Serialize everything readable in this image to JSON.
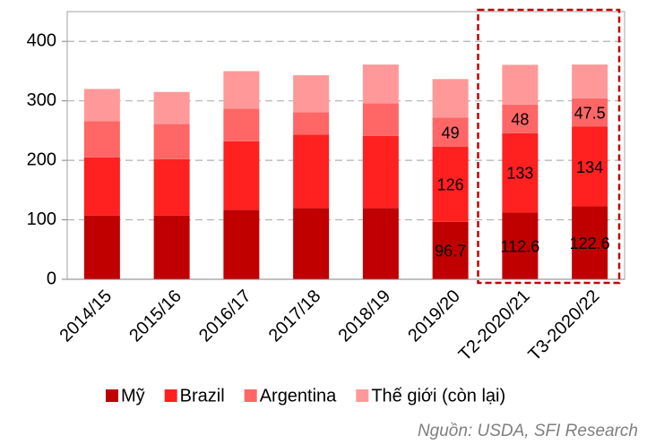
{
  "chart_data": {
    "type": "stacked_bar",
    "categories": [
      "2014/15",
      "2015/16",
      "2016/17",
      "2017/18",
      "2018/19",
      "2019/20",
      "T2-2020/21",
      "T3-2020/22"
    ],
    "series": [
      {
        "name": "Mỹ",
        "color": "#c00000",
        "values": [
          107,
          107,
          117,
          120,
          120,
          96.7,
          112.6,
          122.6
        ],
        "value_labels": [
          null,
          null,
          null,
          null,
          null,
          "96.7",
          "112.6",
          "122.6"
        ]
      },
      {
        "name": "Brazil",
        "color": "#ff2020",
        "values": [
          98,
          95,
          115,
          123,
          121,
          126,
          133,
          134
        ],
        "value_labels": [
          null,
          null,
          null,
          null,
          null,
          "126",
          "133",
          "134"
        ]
      },
      {
        "name": "Argentina",
        "color": "#ff6666",
        "values": [
          61,
          59,
          55,
          38,
          55,
          49,
          48,
          47.5
        ],
        "value_labels": [
          null,
          null,
          null,
          null,
          null,
          "49",
          "48",
          "47.5"
        ]
      },
      {
        "name": "Thế giới (còn lại)",
        "color": "#ff9999",
        "values": [
          54,
          54,
          63,
          62,
          65,
          65,
          67,
          57
        ]
      }
    ],
    "ylim": [
      0,
      450
    ],
    "yticks": [
      0,
      100,
      200,
      300,
      400
    ],
    "grid": true,
    "source": "Nguồn: USDA, SFI Research"
  }
}
